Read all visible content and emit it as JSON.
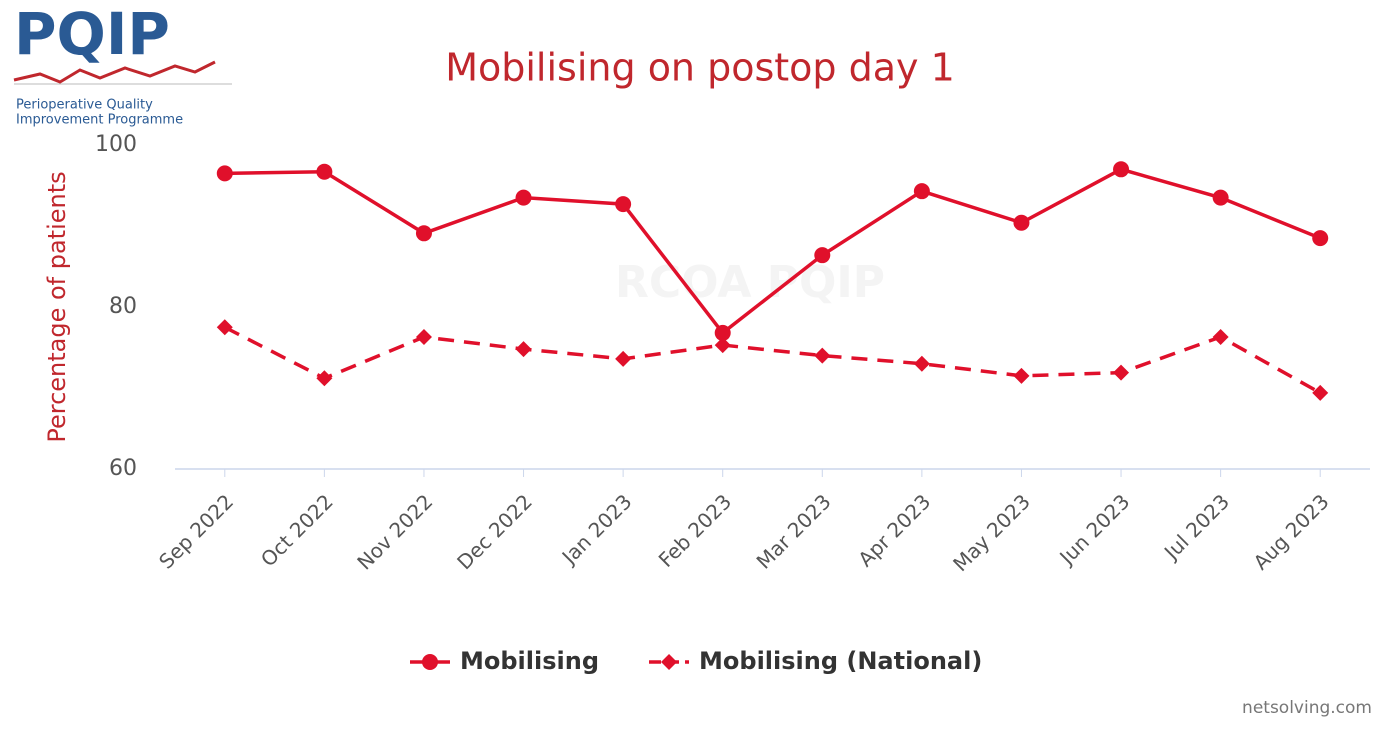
{
  "logo": {
    "name": "PQIP",
    "line1": "Perioperative Quality",
    "line2": "Improvement Programme"
  },
  "watermark": "RCOA PQIP",
  "footer": "netsolving.com",
  "chart_data": {
    "type": "line",
    "title": "Mobilising on postop day 1",
    "y_label": "Percentage of patients",
    "categories": [
      "Sep 2022",
      "Oct 2022",
      "Nov 2022",
      "Dec 2022",
      "Jan 2023",
      "Feb 2023",
      "Mar 2023",
      "Apr 2023",
      "May 2023",
      "Jun 2023",
      "Jul 2023",
      "Aug 2023"
    ],
    "series": [
      {
        "name": "Mobilising",
        "color": "#e0102b",
        "line_style": "solid",
        "marker": "circle",
        "values": [
          96.5,
          96.7,
          89.1,
          93.5,
          92.7,
          76.8,
          86.4,
          94.3,
          90.4,
          97.0,
          93.5,
          88.5
        ]
      },
      {
        "name": "Mobilising (National)",
        "color": "#e0102b",
        "line_style": "dashed",
        "marker": "diamond",
        "values": [
          77.5,
          71.2,
          76.3,
          74.8,
          73.6,
          75.3,
          74.0,
          73.0,
          71.5,
          71.9,
          76.3,
          69.4
        ]
      }
    ],
    "ylim": [
      60,
      100
    ],
    "yticks": [
      60,
      80,
      100
    ],
    "grid": false,
    "legend": "bottom"
  }
}
